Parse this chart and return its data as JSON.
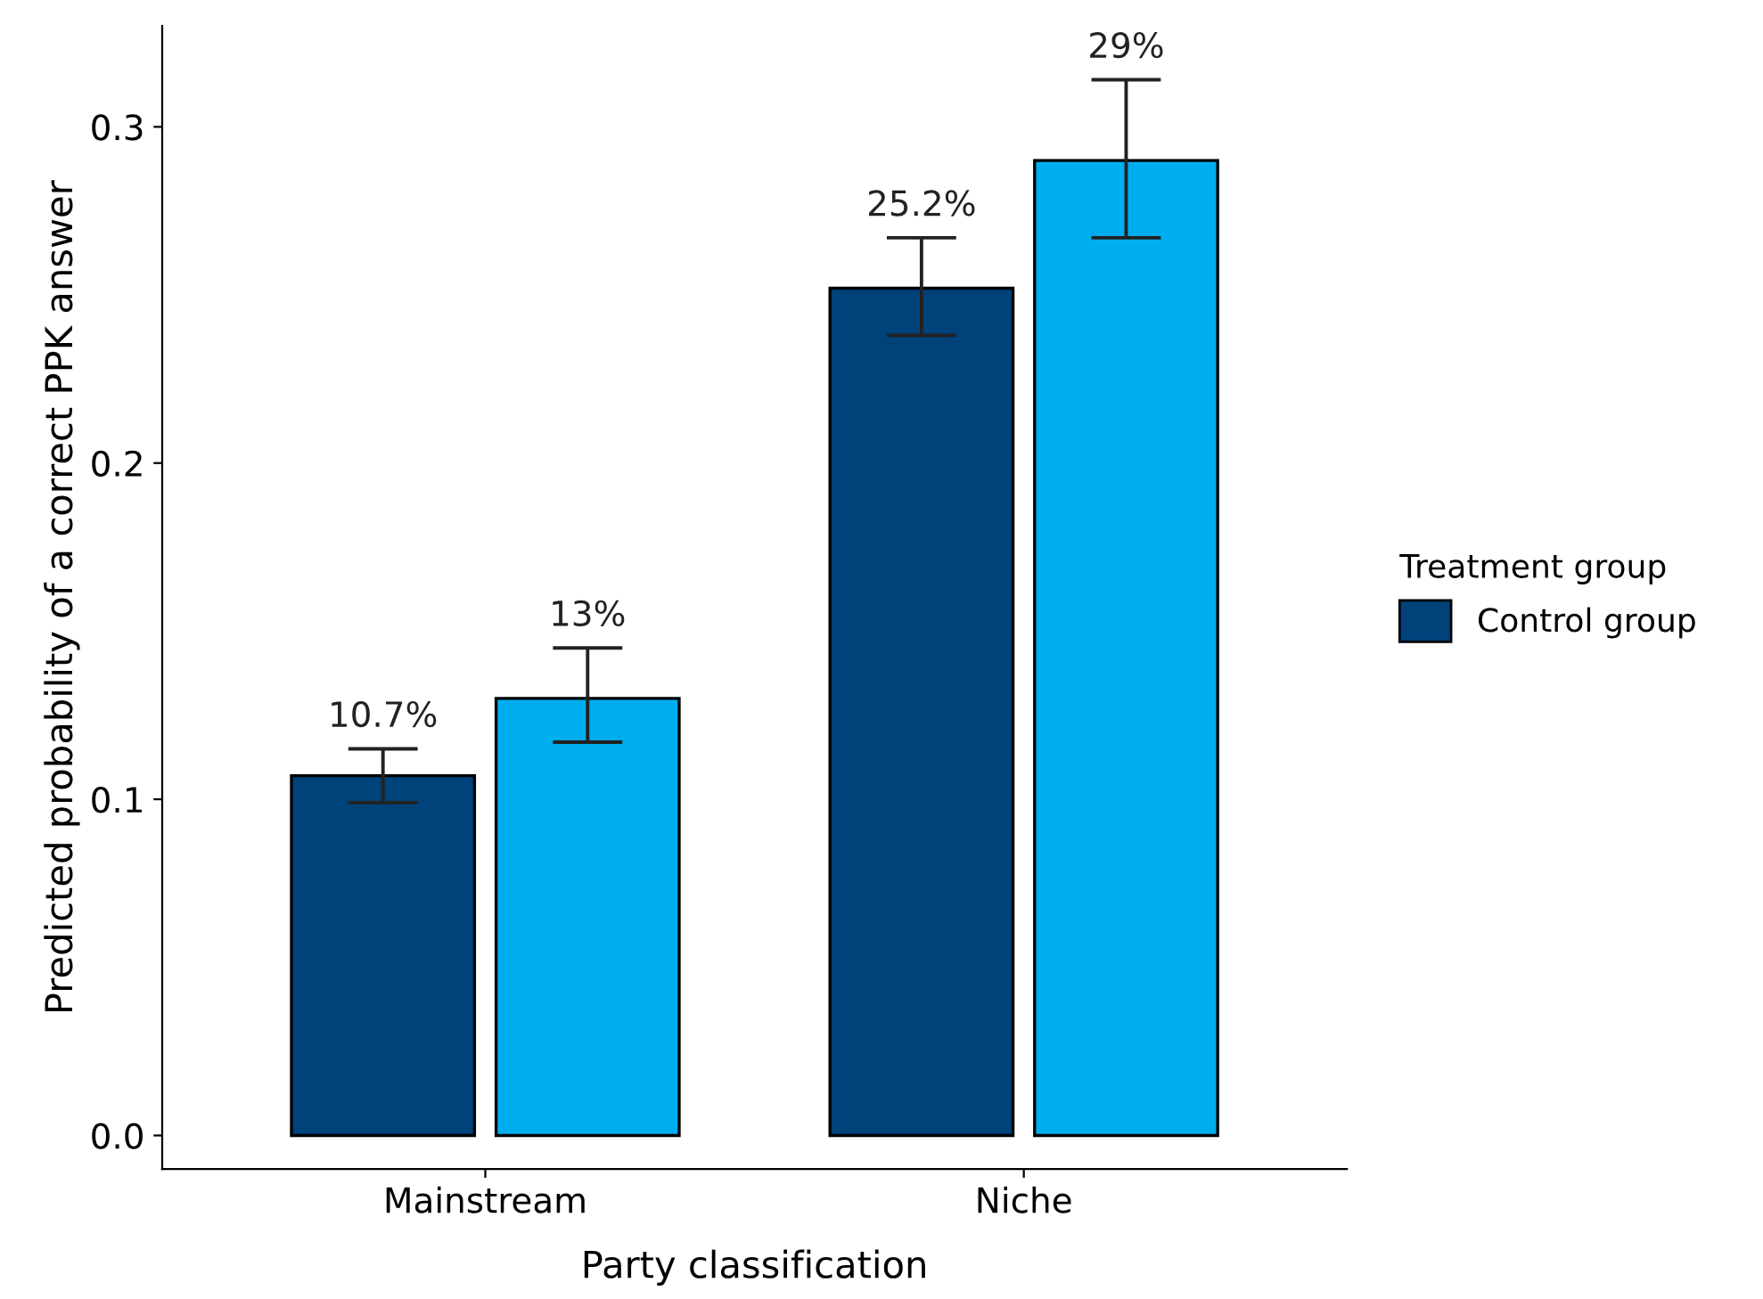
{
  "chart_data": {
    "type": "bar",
    "xlabel": "Party classification",
    "ylabel": "Predicted probability of a correct PPK answer",
    "legend_title": "Treatment group",
    "categories": [
      "Mainstream",
      "Niche"
    ],
    "series": [
      {
        "name": "Control group",
        "color": "#00427a",
        "values": [
          0.107,
          0.252
        ],
        "errors": [
          [
            0.099,
            0.115
          ],
          [
            0.238,
            0.267
          ]
        ],
        "value_labels": [
          "10.7%",
          "25.2%"
        ]
      },
      {
        "color": "#00adee",
        "values": [
          0.13,
          0.29
        ],
        "errors": [
          [
            0.117,
            0.145
          ],
          [
            0.267,
            0.314
          ]
        ],
        "value_labels": [
          "13%",
          "29%"
        ]
      }
    ],
    "ylim": [
      -0.01,
      0.33
    ],
    "yticks": [
      {
        "value": 0,
        "label": "0.0"
      },
      0.1,
      0.2,
      0.3
    ],
    "grid": false,
    "legend": "right"
  }
}
